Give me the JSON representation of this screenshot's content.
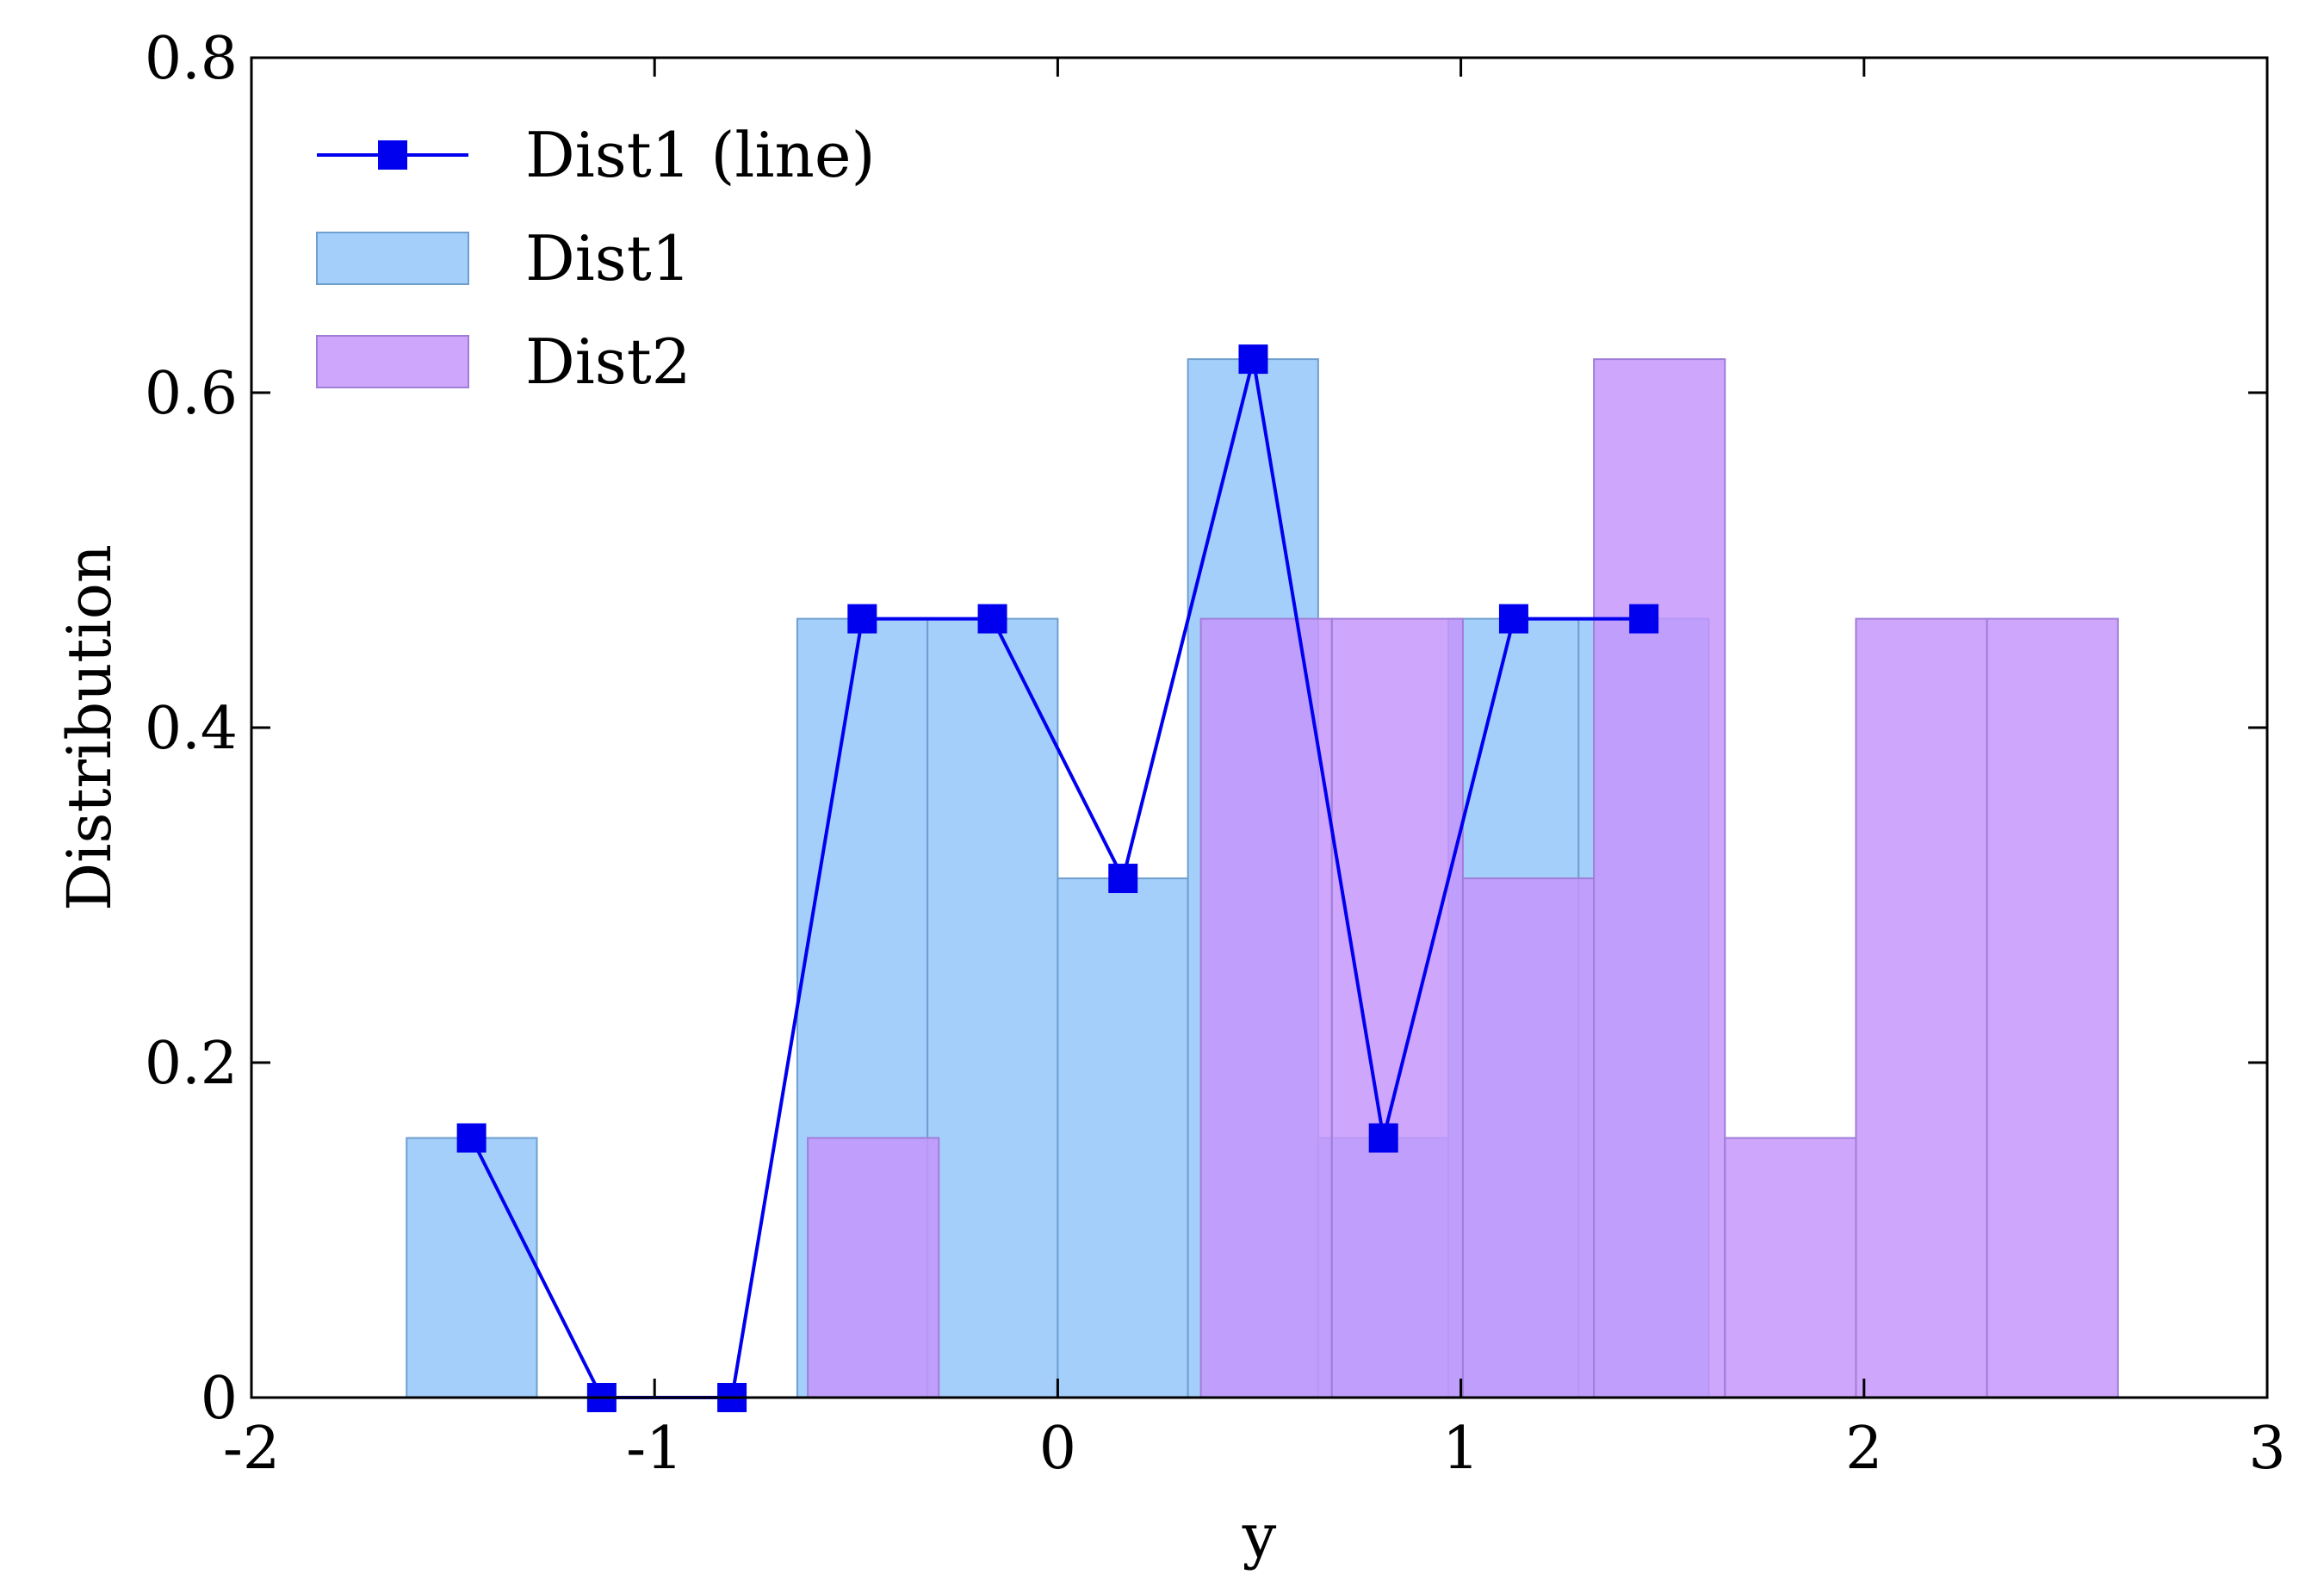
{
  "chart_data": {
    "type": "bar",
    "xlabel": "y",
    "ylabel": "Distribution",
    "xlim": [
      -2,
      3
    ],
    "ylim": [
      0,
      0.8
    ],
    "xticks": [
      -2,
      -1,
      0,
      1,
      2,
      3
    ],
    "xtick_labels": [
      "-2",
      "-1",
      "0",
      "1",
      "2",
      "3"
    ],
    "yticks": [
      0,
      0.2,
      0.4,
      0.6,
      0.8
    ],
    "ytick_labels": [
      "0",
      "0.2",
      "0.4",
      "0.6",
      "0.8"
    ],
    "legend_position": "top-left",
    "grid": false,
    "series": [
      {
        "name": "Dist1",
        "kind": "histogram",
        "color": "#a4cffb",
        "edge_color": "#6f9fcf",
        "bin_edges": [
          -1.615,
          -1.292,
          -0.969,
          -0.646,
          -0.323,
          0.0,
          0.323,
          0.646,
          0.969,
          1.292,
          1.615
        ],
        "values": [
          0.155,
          0.0,
          0.0,
          0.465,
          0.465,
          0.31,
          0.62,
          0.155,
          0.465,
          0.465
        ]
      },
      {
        "name": "Dist2",
        "kind": "histogram",
        "color": "#c596fb",
        "edge_color": "#a07ed8",
        "bin_edges": [
          -0.62,
          -0.295,
          0.03,
          0.355,
          0.68,
          1.005,
          1.33,
          1.655,
          1.98,
          2.305,
          2.63
        ],
        "values": [
          0.155,
          0.0,
          0.0,
          0.465,
          0.465,
          0.31,
          0.62,
          0.155,
          0.465,
          0.465
        ]
      },
      {
        "name": "Dist1 (line)",
        "kind": "line",
        "color": "#0000ee",
        "marker": "square",
        "x": [
          -1.454,
          -1.131,
          -0.808,
          -0.485,
          -0.162,
          0.162,
          0.485,
          0.808,
          1.131,
          1.454
        ],
        "y": [
          0.155,
          0.0,
          0.0,
          0.465,
          0.465,
          0.31,
          0.62,
          0.155,
          0.465,
          0.465
        ]
      }
    ]
  }
}
